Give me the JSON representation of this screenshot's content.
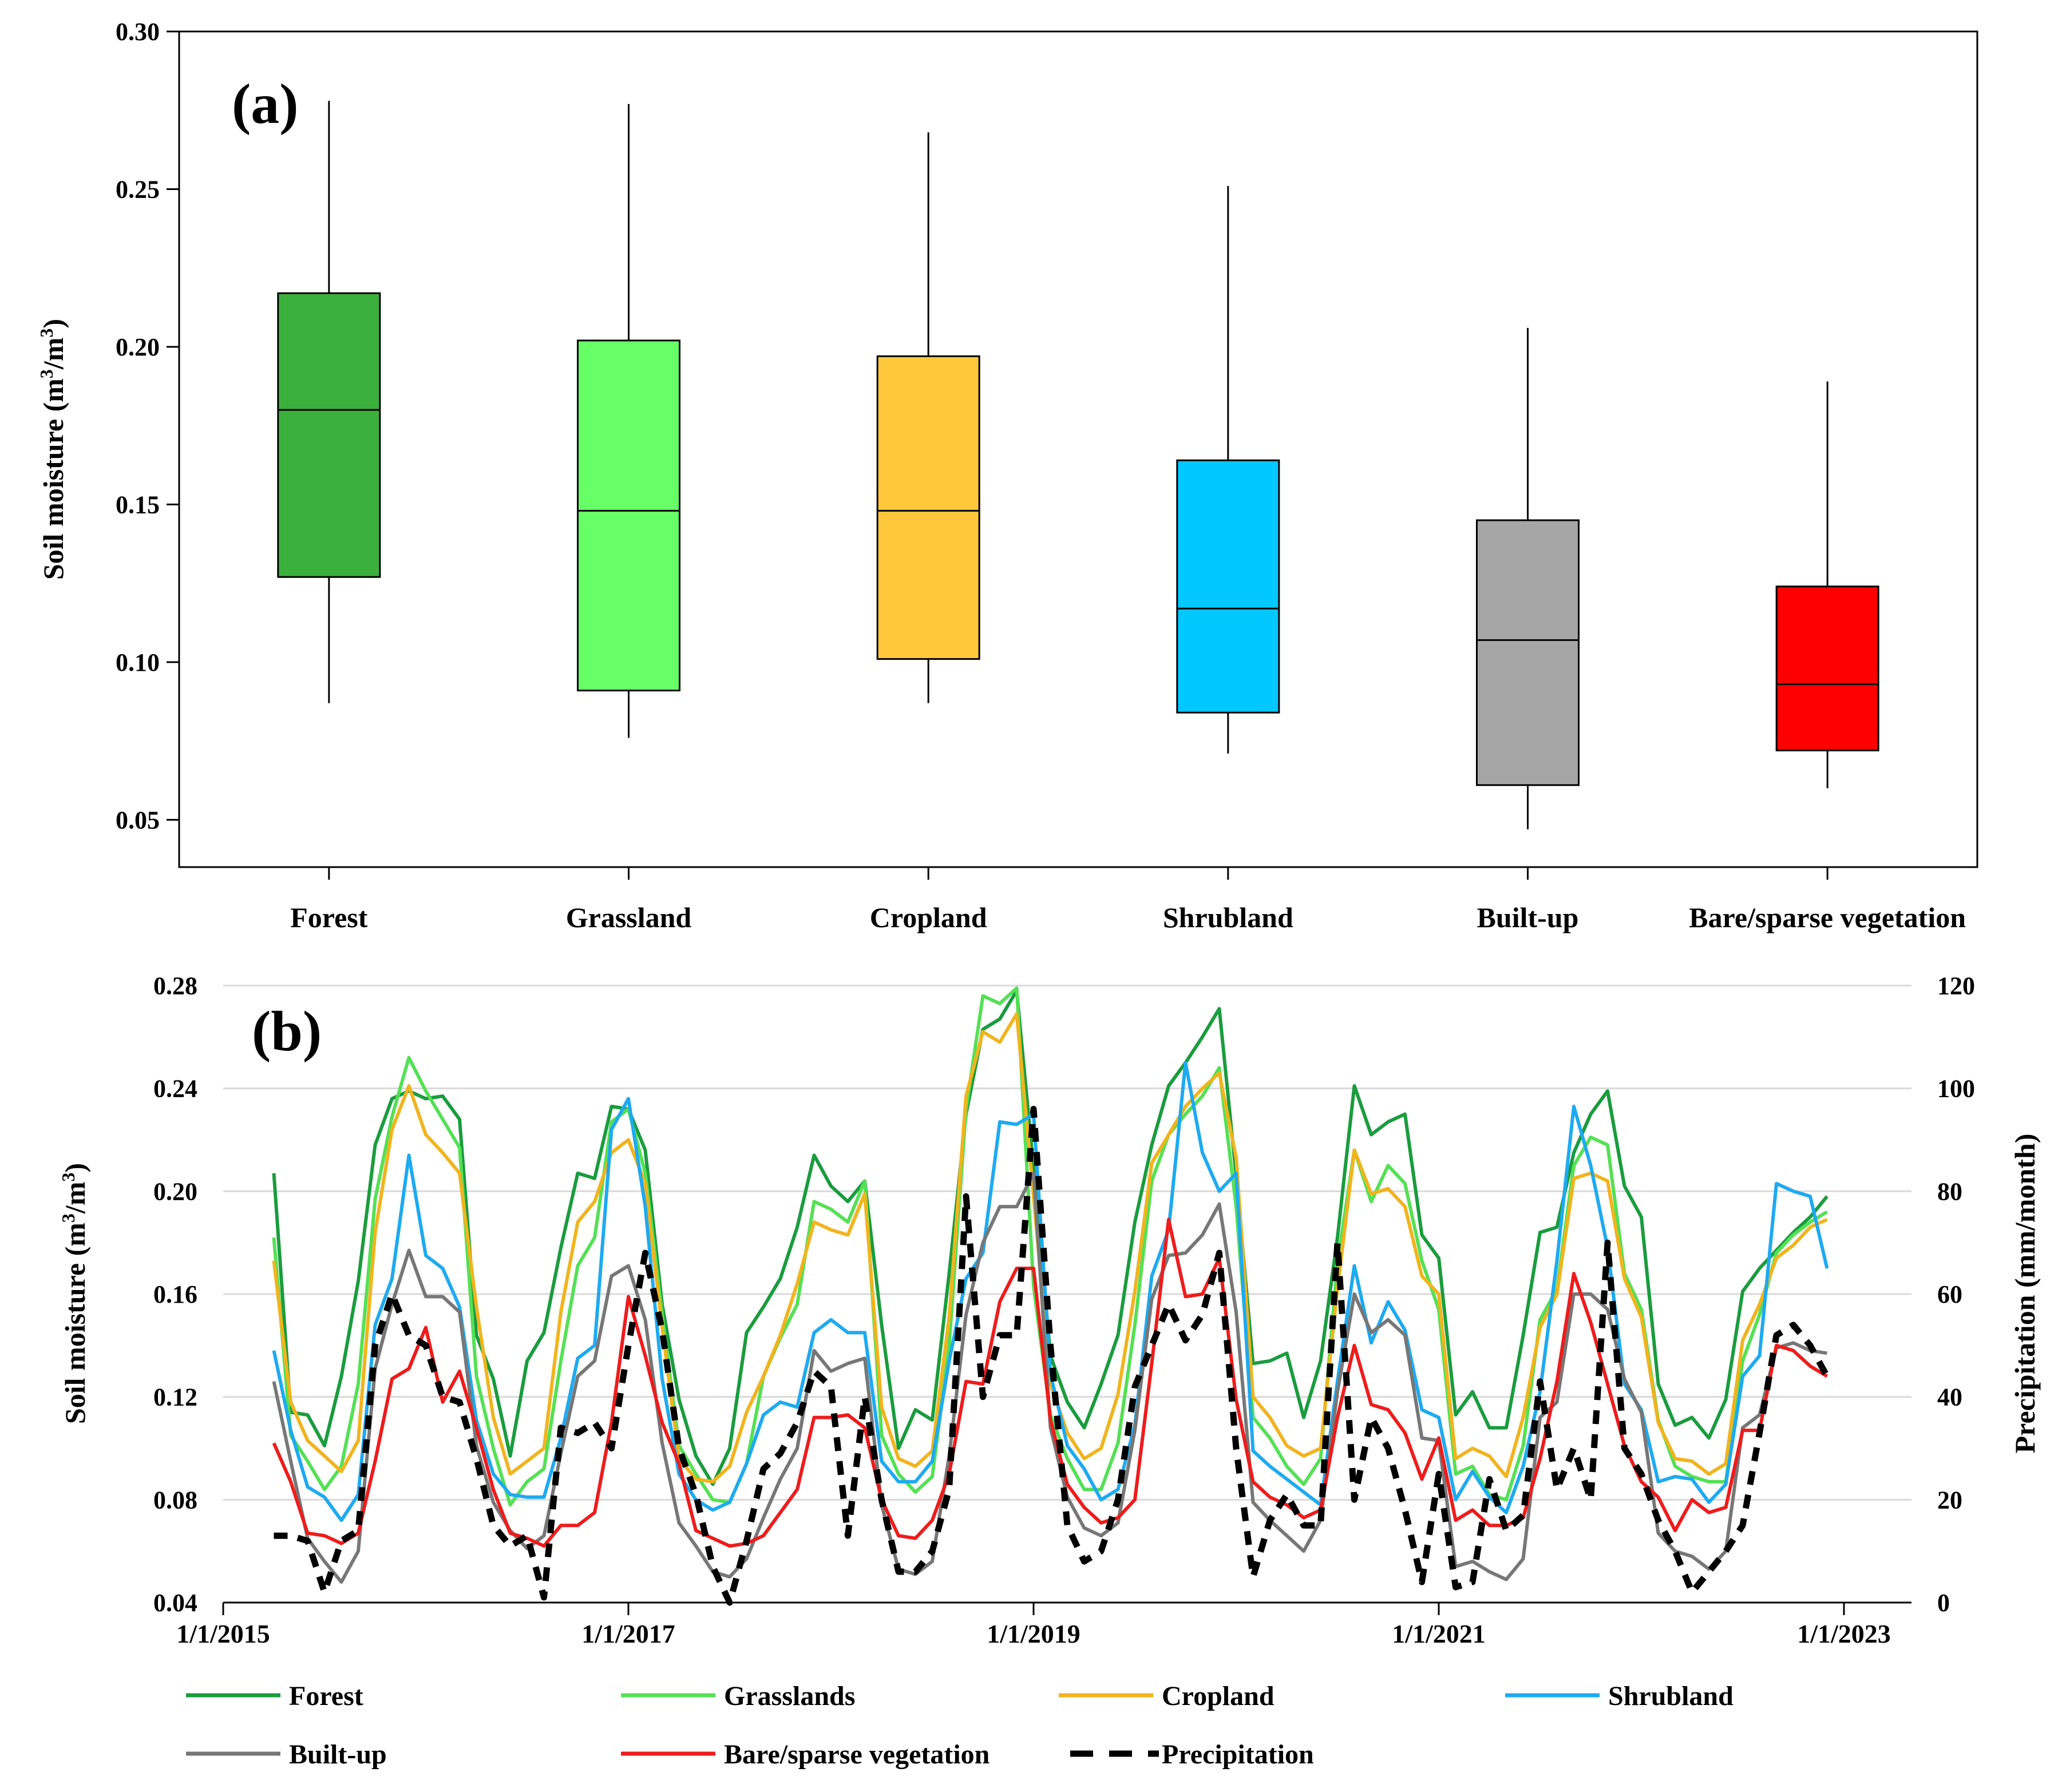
{
  "chart_data": [
    {
      "type": "box",
      "panel_label": "(a)",
      "ylabel": "Soil moisture (m³/m³)",
      "ylabel_parts": {
        "a": "Soil moisture (m",
        "sup1": "3",
        "b": "/m",
        "sup2": "3",
        "c": ")"
      },
      "ylim": [
        0.035,
        0.3
      ],
      "yticks": [
        0.05,
        0.1,
        0.15,
        0.2,
        0.25,
        0.3
      ],
      "ytick_labels": [
        "0.05",
        "0.10",
        "0.15",
        "0.20",
        "0.25",
        "0.30"
      ],
      "categories": [
        "Forest",
        "Grassland",
        "Cropland",
        "Shrubland",
        "Built-up",
        "Bare/sparse vegetation"
      ],
      "boxes": [
        {
          "name": "Forest",
          "whisker_low": 0.087,
          "q1": 0.127,
          "median": 0.18,
          "q3": 0.217,
          "whisker_high": 0.278,
          "color": "#3cb03c"
        },
        {
          "name": "Grassland",
          "whisker_low": 0.076,
          "q1": 0.091,
          "median": 0.148,
          "q3": 0.202,
          "whisker_high": 0.277,
          "color": "#66ff66"
        },
        {
          "name": "Cropland",
          "whisker_low": 0.087,
          "q1": 0.101,
          "median": 0.148,
          "q3": 0.197,
          "whisker_high": 0.268,
          "color": "#ffc83c"
        },
        {
          "name": "Shrubland",
          "whisker_low": 0.071,
          "q1": 0.084,
          "median": 0.117,
          "q3": 0.164,
          "whisker_high": 0.251,
          "color": "#00c8ff"
        },
        {
          "name": "Built-up",
          "whisker_low": 0.047,
          "q1": 0.061,
          "median": 0.107,
          "q3": 0.145,
          "whisker_high": 0.206,
          "color": "#a6a6a6"
        },
        {
          "name": "Bare/sparse vegetation",
          "whisker_low": 0.06,
          "q1": 0.072,
          "median": 0.093,
          "q3": 0.124,
          "whisker_high": 0.189,
          "color": "#ff0000"
        }
      ]
    },
    {
      "type": "line",
      "panel_label": "(b)",
      "ylabel": "Soil moisture (m³/m³)",
      "ylabel_parts": {
        "a": "Soil moisture (m",
        "sup1": "3",
        "b": "/m",
        "sup2": "3",
        "c": ")"
      },
      "y2label": "Precipitation (mm/month)",
      "ylim": [
        0.04,
        0.28
      ],
      "yticks": [
        0.04,
        0.08,
        0.12,
        0.16,
        0.2,
        0.24,
        0.28
      ],
      "ytick_labels": [
        "0.04",
        "0.08",
        "0.12",
        "0.16",
        "0.20",
        "0.24",
        "0.28"
      ],
      "y2lim": [
        0,
        120
      ],
      "y2ticks": [
        0,
        20,
        40,
        60,
        80,
        100,
        120
      ],
      "y2tick_labels": [
        "0",
        "20",
        "40",
        "60",
        "80",
        "100",
        "120"
      ],
      "x_start": "2015-01",
      "x_range_months": [
        0,
        100
      ],
      "xticks": [
        {
          "month": 0,
          "label": "1/1/2015"
        },
        {
          "month": 24,
          "label": "1/1/2017"
        },
        {
          "month": 48,
          "label": "1/1/2019"
        },
        {
          "month": 72,
          "label": "1/1/2021"
        },
        {
          "month": 96,
          "label": "1/1/2023"
        }
      ],
      "x_months": [
        3,
        4,
        5,
        6,
        7,
        8,
        9,
        10,
        11,
        12,
        13,
        14,
        15,
        16,
        17,
        18,
        19,
        20,
        21,
        22,
        23,
        24,
        25,
        26,
        27,
        28,
        29,
        30,
        31,
        32,
        33,
        34,
        35,
        36,
        37,
        38,
        39,
        40,
        41,
        42,
        43,
        44,
        45,
        46,
        47,
        48,
        49,
        50,
        51,
        52,
        53,
        54,
        55,
        56,
        57,
        58,
        59,
        60,
        61,
        62,
        63,
        64,
        65,
        66,
        67,
        68,
        69,
        70,
        71,
        72,
        73,
        74,
        75,
        76,
        77,
        78,
        79,
        80,
        81,
        82,
        83,
        84,
        85,
        86,
        87,
        88,
        89,
        90,
        91,
        92,
        93,
        94,
        95,
        96,
        97,
        98,
        99
      ],
      "series": [
        {
          "name": "Forest",
          "axis": "left",
          "color": "#1a9c3e",
          "dash": "",
          "values": [
            0.207,
            0.114,
            0.113,
            0.101,
            0.128,
            0.165,
            0.218,
            0.236,
            0.239,
            0.236,
            0.237,
            0.228,
            0.144,
            0.127,
            0.097,
            0.134,
            0.145,
            0.178,
            0.207,
            0.205,
            0.233,
            0.232,
            0.216,
            0.156,
            0.119,
            0.097,
            0.086,
            0.1,
            0.145,
            0.155,
            0.166,
            0.186,
            0.214,
            0.202,
            0.196,
            0.204,
            0.148,
            0.1,
            0.115,
            0.111,
            0.168,
            0.23,
            0.263,
            0.267,
            0.278,
            0.209,
            0.136,
            0.118,
            0.108,
            0.125,
            0.144,
            0.188,
            0.218,
            0.241,
            0.25,
            0.26,
            0.271,
            0.206,
            0.133,
            0.134,
            0.137,
            0.112,
            0.134,
            0.182,
            0.241,
            0.222,
            0.227,
            0.23,
            0.183,
            0.174,
            0.113,
            0.122,
            0.108,
            0.108,
            0.144,
            0.184,
            0.186,
            0.215,
            0.23,
            0.239,
            0.202,
            0.19,
            0.125,
            0.109,
            0.112,
            0.104,
            0.119,
            0.161,
            0.17,
            0.177,
            0.184,
            0.19,
            0.198
          ]
        },
        {
          "name": "Grasslands",
          "axis": "left",
          "color": "#55e055",
          "dash": "",
          "values": [
            0.182,
            0.105,
            0.095,
            0.084,
            0.093,
            0.125,
            0.197,
            0.229,
            0.252,
            0.239,
            0.228,
            0.217,
            0.128,
            0.1,
            0.078,
            0.087,
            0.092,
            0.134,
            0.171,
            0.182,
            0.227,
            0.232,
            0.207,
            0.152,
            0.101,
            0.09,
            0.08,
            0.079,
            0.094,
            0.128,
            0.143,
            0.156,
            0.196,
            0.193,
            0.188,
            0.204,
            0.105,
            0.09,
            0.083,
            0.089,
            0.14,
            0.232,
            0.276,
            0.273,
            0.279,
            0.163,
            0.113,
            0.096,
            0.084,
            0.084,
            0.102,
            0.148,
            0.204,
            0.222,
            0.23,
            0.237,
            0.248,
            0.194,
            0.112,
            0.104,
            0.093,
            0.086,
            0.096,
            0.172,
            0.216,
            0.196,
            0.21,
            0.203,
            0.173,
            0.154,
            0.09,
            0.093,
            0.082,
            0.08,
            0.101,
            0.15,
            0.162,
            0.21,
            0.221,
            0.218,
            0.168,
            0.154,
            0.111,
            0.093,
            0.089,
            0.087,
            0.087,
            0.134,
            0.152,
            0.176,
            0.183,
            0.188,
            0.192
          ]
        },
        {
          "name": "Cropland",
          "axis": "left",
          "color": "#f0b41e",
          "dash": "",
          "values": [
            0.173,
            0.118,
            0.103,
            0.097,
            0.091,
            0.103,
            0.184,
            0.224,
            0.241,
            0.222,
            0.215,
            0.207,
            0.155,
            0.112,
            0.09,
            0.095,
            0.1,
            0.153,
            0.188,
            0.196,
            0.215,
            0.22,
            0.203,
            0.147,
            0.096,
            0.088,
            0.087,
            0.093,
            0.114,
            0.128,
            0.144,
            0.164,
            0.188,
            0.185,
            0.183,
            0.199,
            0.116,
            0.096,
            0.093,
            0.099,
            0.151,
            0.237,
            0.262,
            0.258,
            0.269,
            0.198,
            0.125,
            0.106,
            0.096,
            0.1,
            0.121,
            0.161,
            0.211,
            0.222,
            0.233,
            0.24,
            0.246,
            0.213,
            0.12,
            0.112,
            0.101,
            0.097,
            0.1,
            0.162,
            0.216,
            0.199,
            0.201,
            0.194,
            0.167,
            0.16,
            0.096,
            0.1,
            0.097,
            0.089,
            0.112,
            0.147,
            0.16,
            0.205,
            0.207,
            0.204,
            0.166,
            0.151,
            0.11,
            0.096,
            0.095,
            0.09,
            0.094,
            0.142,
            0.156,
            0.174,
            0.179,
            0.186,
            0.189
          ]
        },
        {
          "name": "Shrubland",
          "axis": "left",
          "color": "#1eaaf0",
          "dash": "",
          "values": [
            0.138,
            0.107,
            0.085,
            0.081,
            0.072,
            0.082,
            0.148,
            0.166,
            0.214,
            0.175,
            0.17,
            0.155,
            0.111,
            0.09,
            0.082,
            0.081,
            0.081,
            0.104,
            0.135,
            0.14,
            0.224,
            0.236,
            0.194,
            0.127,
            0.09,
            0.08,
            0.076,
            0.079,
            0.094,
            0.113,
            0.118,
            0.116,
            0.145,
            0.15,
            0.145,
            0.145,
            0.095,
            0.087,
            0.087,
            0.095,
            0.134,
            0.166,
            0.176,
            0.227,
            0.226,
            0.23,
            0.129,
            0.101,
            0.092,
            0.08,
            0.084,
            0.109,
            0.167,
            0.185,
            0.25,
            0.215,
            0.2,
            0.207,
            0.099,
            0.093,
            0.088,
            0.083,
            0.078,
            0.126,
            0.171,
            0.141,
            0.157,
            0.146,
            0.115,
            0.112,
            0.08,
            0.091,
            0.081,
            0.075,
            0.093,
            0.122,
            0.173,
            0.233,
            0.21,
            0.178,
            0.125,
            0.115,
            0.087,
            0.089,
            0.088,
            0.079,
            0.086,
            0.128,
            0.136,
            0.203,
            0.2,
            0.198,
            0.17
          ]
        },
        {
          "name": "Built-up",
          "axis": "left",
          "color": "#777777",
          "dash": "",
          "values": [
            0.126,
            0.095,
            0.065,
            0.056,
            0.048,
            0.06,
            0.131,
            0.156,
            0.177,
            0.159,
            0.159,
            0.153,
            0.101,
            0.079,
            0.068,
            0.061,
            0.066,
            0.098,
            0.128,
            0.134,
            0.167,
            0.171,
            0.15,
            0.102,
            0.071,
            0.062,
            0.052,
            0.05,
            0.057,
            0.073,
            0.088,
            0.1,
            0.138,
            0.13,
            0.133,
            0.135,
            0.078,
            0.053,
            0.051,
            0.056,
            0.097,
            0.152,
            0.18,
            0.194,
            0.194,
            0.207,
            0.108,
            0.081,
            0.069,
            0.066,
            0.071,
            0.107,
            0.158,
            0.175,
            0.176,
            0.183,
            0.195,
            0.153,
            0.079,
            0.072,
            0.066,
            0.06,
            0.072,
            0.122,
            0.16,
            0.145,
            0.15,
            0.144,
            0.104,
            0.103,
            0.054,
            0.056,
            0.052,
            0.049,
            0.057,
            0.112,
            0.118,
            0.16,
            0.16,
            0.154,
            0.127,
            0.114,
            0.067,
            0.06,
            0.058,
            0.053,
            0.06,
            0.108,
            0.113,
            0.139,
            0.141,
            0.138,
            0.137
          ]
        },
        {
          "name": "Bare/sparse vegetation",
          "axis": "left",
          "color": "#ee1c1c",
          "dash": "",
          "values": [
            0.102,
            0.087,
            0.067,
            0.066,
            0.063,
            0.067,
            0.095,
            0.127,
            0.131,
            0.147,
            0.118,
            0.13,
            0.108,
            0.084,
            0.067,
            0.065,
            0.062,
            0.07,
            0.07,
            0.075,
            0.11,
            0.159,
            0.136,
            0.11,
            0.094,
            0.068,
            0.065,
            0.062,
            0.063,
            0.066,
            0.075,
            0.084,
            0.112,
            0.112,
            0.113,
            0.108,
            0.08,
            0.066,
            0.065,
            0.072,
            0.09,
            0.126,
            0.125,
            0.157,
            0.17,
            0.17,
            0.111,
            0.086,
            0.077,
            0.071,
            0.073,
            0.08,
            0.133,
            0.189,
            0.159,
            0.16,
            0.174,
            0.119,
            0.087,
            0.081,
            0.078,
            0.073,
            0.076,
            0.112,
            0.14,
            0.117,
            0.115,
            0.106,
            0.088,
            0.104,
            0.072,
            0.076,
            0.07,
            0.07,
            0.073,
            0.096,
            0.126,
            0.168,
            0.149,
            0.125,
            0.101,
            0.087,
            0.081,
            0.068,
            0.08,
            0.075,
            0.077,
            0.107,
            0.107,
            0.14,
            0.138,
            0.132,
            0.128
          ]
        },
        {
          "name": "Precipitation",
          "axis": "right",
          "color": "#000000",
          "dash": "24,18",
          "values": [
            13,
            13,
            12,
            2,
            12,
            14,
            50,
            60,
            52,
            50,
            40,
            39,
            28,
            15,
            11,
            13,
            1,
            34,
            33,
            35,
            30,
            50,
            68,
            53,
            30,
            21,
            7,
            0,
            12,
            26,
            29,
            35,
            45,
            42,
            13,
            40,
            20,
            6,
            6,
            10,
            22,
            79,
            40,
            52,
            52,
            96,
            50,
            15,
            8,
            10,
            20,
            42,
            50,
            58,
            51,
            56,
            68,
            30,
            5,
            16,
            21,
            15,
            15,
            70,
            20,
            36,
            30,
            18,
            4,
            25,
            3,
            4,
            24,
            14,
            17,
            43,
            22,
            30,
            20,
            70,
            30,
            25,
            16,
            10,
            2,
            6,
            10,
            15,
            33,
            52,
            54,
            50,
            44
          ]
        }
      ],
      "legend": [
        "Forest",
        "Grasslands",
        "Cropland",
        "Shrubland",
        "Built-up",
        "Bare/sparse vegetation",
        "Precipitation"
      ]
    }
  ]
}
